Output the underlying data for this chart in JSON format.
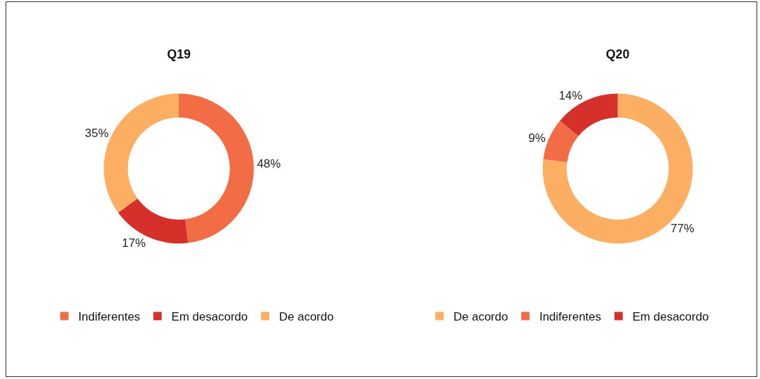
{
  "chart_data": [
    {
      "type": "donut",
      "title": "Q19",
      "categories": [
        "Indiferentes",
        "Em desacordo",
        "De acordo"
      ],
      "values": [
        48,
        17,
        35
      ],
      "value_labels": [
        "48%",
        "17%",
        "35%"
      ],
      "colors": [
        "#f26d45",
        "#d6302a",
        "#fcae62"
      ],
      "legend": "bottom"
    },
    {
      "type": "donut",
      "title": "Q20",
      "categories": [
        "De acordo",
        "Indiferentes",
        "Em desacordo"
      ],
      "values": [
        77,
        9,
        14
      ],
      "value_labels": [
        "77%",
        "9%",
        "14%"
      ],
      "colors": [
        "#fcae62",
        "#f26d45",
        "#d6302a"
      ],
      "legend": "bottom"
    }
  ]
}
